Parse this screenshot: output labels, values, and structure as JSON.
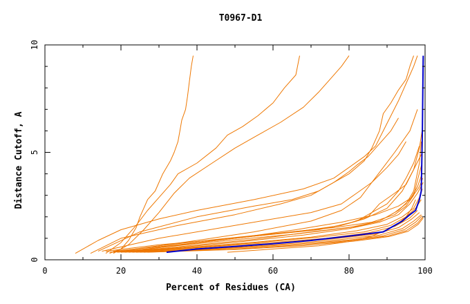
{
  "chart_data": {
    "type": "line",
    "title": "T0967-D1",
    "xlabel": "Percent of Residues (CA)",
    "ylabel": "Distance Cutoff, A",
    "xlim": [
      0,
      100
    ],
    "ylim": [
      0,
      10
    ],
    "x_ticks": [
      0,
      20,
      40,
      60,
      80,
      100
    ],
    "y_ticks": [
      0,
      5,
      10
    ],
    "x_tick_labels": [
      "0",
      "20",
      "40",
      "60",
      "80",
      "100"
    ],
    "y_tick_labels": [
      "0",
      "5",
      "10"
    ],
    "grid": false,
    "legend": "none",
    "colors": {
      "highlight": "#0000cc",
      "others": "#ee7700"
    },
    "series": [
      {
        "role": "highlight",
        "x": [
          32,
          40,
          50,
          60,
          70,
          80,
          89,
          94,
          96,
          97.5,
          98.5,
          99,
          99.3,
          99.5
        ],
        "y": [
          0.35,
          0.5,
          0.62,
          0.75,
          0.9,
          1.1,
          1.3,
          1.8,
          2.1,
          2.3,
          2.8,
          3.2,
          6.0,
          9.5
        ]
      },
      {
        "role": "other",
        "x": [
          17,
          20,
          22,
          24,
          25,
          26,
          27,
          29,
          30,
          31,
          32,
          33,
          34,
          35,
          35.5,
          36,
          37,
          37.5,
          38,
          38.5,
          39
        ],
        "y": [
          0.3,
          0.5,
          0.9,
          1.5,
          2.0,
          2.4,
          2.8,
          3.2,
          3.6,
          4.0,
          4.3,
          4.6,
          5.0,
          5.5,
          6.0,
          6.5,
          7.0,
          7.6,
          8.3,
          9.0,
          9.5
        ]
      },
      {
        "role": "other",
        "x": [
          16,
          20,
          24,
          27,
          30,
          33,
          35,
          40,
          45,
          48,
          52,
          56,
          60,
          63,
          66,
          67
        ],
        "y": [
          0.3,
          0.8,
          1.6,
          2.3,
          2.9,
          3.5,
          4.0,
          4.5,
          5.2,
          5.8,
          6.2,
          6.7,
          7.3,
          8.0,
          8.6,
          9.5
        ]
      },
      {
        "role": "other",
        "x": [
          18,
          22,
          26,
          30,
          34,
          38,
          44,
          50,
          56,
          62,
          68,
          72,
          75,
          78,
          80
        ],
        "y": [
          0.3,
          0.7,
          1.4,
          2.2,
          3.1,
          3.8,
          4.5,
          5.2,
          5.8,
          6.4,
          7.1,
          7.8,
          8.4,
          9.0,
          9.5
        ]
      },
      {
        "role": "other",
        "x": [
          8,
          14,
          20,
          30,
          40,
          55,
          68,
          76,
          80,
          84,
          87,
          89,
          91,
          93,
          95,
          97,
          98
        ],
        "y": [
          0.3,
          0.9,
          1.4,
          1.9,
          2.3,
          2.8,
          3.3,
          3.8,
          4.3,
          4.8,
          5.3,
          6.0,
          6.7,
          7.4,
          8.2,
          9.0,
          9.5
        ]
      },
      {
        "role": "other",
        "x": [
          12,
          20,
          35,
          50,
          62,
          70,
          75,
          80,
          84,
          86,
          88,
          89,
          91,
          93,
          95,
          96,
          97
        ],
        "y": [
          0.3,
          1.0,
          1.6,
          2.1,
          2.6,
          3.0,
          3.5,
          4.0,
          4.6,
          5.2,
          6.0,
          6.8,
          7.3,
          7.9,
          8.4,
          9.0,
          9.5
        ]
      },
      {
        "role": "other",
        "x": [
          14,
          25,
          40,
          55,
          65,
          72,
          76,
          80,
          82,
          85,
          88,
          91,
          93
        ],
        "y": [
          0.4,
          1.3,
          2.0,
          2.5,
          2.8,
          3.2,
          3.6,
          4.1,
          4.4,
          4.8,
          5.4,
          6.0,
          6.6
        ]
      },
      {
        "role": "other",
        "x": [
          15,
          30,
          50,
          70,
          78,
          82,
          86,
          90,
          93,
          95
        ],
        "y": [
          0.4,
          1.0,
          1.6,
          2.2,
          2.6,
          3.1,
          3.6,
          4.3,
          4.9,
          5.5
        ]
      },
      {
        "role": "other",
        "x": [
          20,
          40,
          55,
          70,
          78,
          83,
          86,
          89,
          92,
          96,
          98
        ],
        "y": [
          0.4,
          0.9,
          1.3,
          1.8,
          2.3,
          2.9,
          3.6,
          4.3,
          5.0,
          6.0,
          7.0
        ]
      },
      {
        "role": "other",
        "x": [
          22,
          40,
          60,
          75,
          82,
          86,
          90,
          93,
          95,
          97,
          98.5
        ],
        "y": [
          0.4,
          0.8,
          1.2,
          1.5,
          1.8,
          2.2,
          2.6,
          3.2,
          3.8,
          4.5,
          5.3
        ]
      },
      {
        "role": "other",
        "x": [
          18,
          35,
          55,
          72,
          80,
          85,
          88,
          92,
          95,
          97,
          99
        ],
        "y": [
          0.4,
          0.7,
          1.1,
          1.4,
          1.7,
          2.0,
          2.6,
          3.1,
          3.5,
          4.2,
          4.9
        ]
      },
      {
        "role": "other",
        "x": [
          16,
          30,
          50,
          68,
          78,
          84,
          90,
          94,
          97,
          98.5,
          99.2
        ],
        "y": [
          0.4,
          0.7,
          1.0,
          1.35,
          1.6,
          1.9,
          2.4,
          3.2,
          4.2,
          5.2,
          6.0
        ]
      },
      {
        "role": "other",
        "x": [
          20,
          35,
          55,
          70,
          82,
          88,
          92,
          95,
          97,
          98.5,
          99
        ],
        "y": [
          0.35,
          0.6,
          0.95,
          1.3,
          1.55,
          1.8,
          2.2,
          2.6,
          3.2,
          4.5,
          5.5
        ]
      },
      {
        "role": "other",
        "x": [
          17,
          30,
          45,
          62,
          76,
          86,
          92,
          95,
          97,
          98,
          99.2
        ],
        "y": [
          0.35,
          0.65,
          0.95,
          1.25,
          1.5,
          1.75,
          2.1,
          2.5,
          3.0,
          3.7,
          4.5
        ]
      },
      {
        "role": "other",
        "x": [
          18,
          32,
          48,
          66,
          80,
          88,
          93,
          96,
          98,
          99
        ],
        "y": [
          0.35,
          0.6,
          0.9,
          1.2,
          1.5,
          1.8,
          2.3,
          2.8,
          3.4,
          3.9
        ]
      },
      {
        "role": "other",
        "x": [
          19,
          34,
          52,
          68,
          80,
          88,
          93,
          96,
          98,
          99.5
        ],
        "y": [
          0.35,
          0.55,
          0.85,
          1.15,
          1.45,
          1.75,
          2.1,
          2.6,
          3.1,
          3.6
        ]
      },
      {
        "role": "other",
        "x": [
          20,
          36,
          54,
          70,
          82,
          90,
          94,
          97,
          98.5,
          99.3
        ],
        "y": [
          0.35,
          0.55,
          0.8,
          1.05,
          1.35,
          1.65,
          2.0,
          2.4,
          2.9,
          3.3
        ]
      },
      {
        "role": "other",
        "x": [
          21,
          38,
          56,
          72,
          84,
          91,
          95,
          97.5,
          99
        ],
        "y": [
          0.35,
          0.55,
          0.8,
          1.05,
          1.3,
          1.6,
          2.0,
          2.4,
          2.8
        ]
      },
      {
        "role": "other",
        "x": [
          22,
          40,
          58,
          74,
          85,
          92,
          96,
          98
        ],
        "y": [
          0.35,
          0.55,
          0.78,
          1.0,
          1.25,
          1.55,
          1.95,
          2.3
        ]
      },
      {
        "role": "other",
        "x": [
          23,
          42,
          60,
          76,
          87,
          93,
          96.5,
          98.5
        ],
        "y": [
          0.35,
          0.52,
          0.75,
          0.98,
          1.2,
          1.5,
          1.9,
          2.2
        ]
      },
      {
        "role": "other",
        "x": [
          24,
          44,
          62,
          78,
          88,
          94,
          97,
          99
        ],
        "y": [
          0.35,
          0.5,
          0.72,
          0.95,
          1.15,
          1.45,
          1.8,
          2.1
        ]
      },
      {
        "role": "other",
        "x": [
          25,
          46,
          64,
          80,
          89,
          94.5,
          97.5,
          99.2
        ],
        "y": [
          0.35,
          0.5,
          0.7,
          0.92,
          1.12,
          1.4,
          1.75,
          2.05
        ]
      },
      {
        "role": "other",
        "x": [
          26,
          48,
          66,
          81,
          90,
          95,
          98,
          99.4
        ],
        "y": [
          0.35,
          0.48,
          0.68,
          0.9,
          1.1,
          1.35,
          1.7,
          2.0
        ]
      },
      {
        "role": "other",
        "x": [
          27,
          50,
          68,
          82,
          90.5,
          95.5,
          98.2,
          99.5
        ],
        "y": [
          0.35,
          0.48,
          0.66,
          0.88,
          1.08,
          1.32,
          1.65,
          1.95
        ]
      },
      {
        "role": "other",
        "x": [
          21,
          36,
          52,
          66,
          78,
          87,
          93,
          96.5,
          98.5,
          99.4
        ],
        "y": [
          0.35,
          0.7,
          1.05,
          1.4,
          1.75,
          2.1,
          2.5,
          2.9,
          3.4,
          3.8
        ]
      },
      {
        "role": "other",
        "x": [
          48,
          60,
          72,
          80,
          86,
          90,
          93,
          95,
          96.5,
          97.5
        ],
        "y": [
          0.35,
          0.5,
          0.65,
          0.85,
          1.1,
          1.4,
          1.7,
          2.0,
          2.4,
          2.8
        ]
      }
    ]
  }
}
